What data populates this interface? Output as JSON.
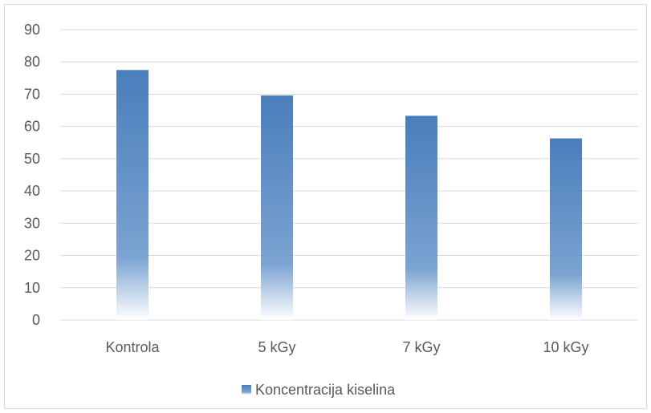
{
  "chart_data": {
    "type": "bar",
    "categories": [
      "Kontrola",
      "5 kGy",
      "7 kGy",
      "10 kGy"
    ],
    "series": [
      {
        "name": "Koncentracija kiselina",
        "values": [
          77.5,
          69.6,
          63.3,
          56.3
        ]
      }
    ],
    "ylim": [
      0,
      90
    ],
    "yticks": [
      0,
      10,
      20,
      30,
      40,
      50,
      60,
      70,
      80,
      90
    ],
    "grid": true,
    "legend_position": "bottom",
    "colors": {
      "bar": "#4a7ebb",
      "bar_fade": "#ffffff",
      "grid": "#d9d9d9",
      "text": "#595959"
    }
  }
}
